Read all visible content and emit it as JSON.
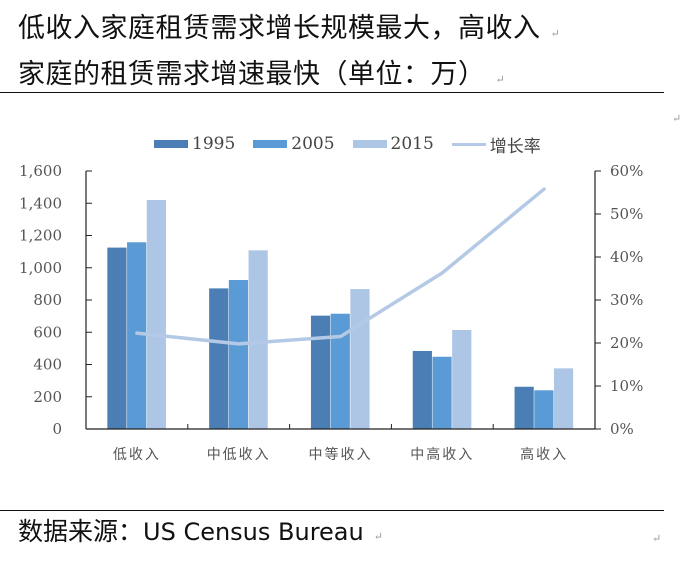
{
  "title": {
    "line1": "低收入家庭租赁需求增长规模最大，高收入",
    "line2": "家庭的租赁需求增速最快（单位：万）"
  },
  "legend": [
    {
      "label": "1995",
      "color": "#4a7eb5",
      "type": "bar"
    },
    {
      "label": "2005",
      "color": "#5b9bd5",
      "type": "bar"
    },
    {
      "label": "2015",
      "color": "#adc6e5",
      "type": "bar"
    },
    {
      "label": "增长率",
      "color": "#b4c9e6",
      "type": "line"
    }
  ],
  "source": {
    "label": "数据来源：",
    "value": "US Census Bureau"
  },
  "return_mark": "↵",
  "chart_data": {
    "type": "bar",
    "title": "低收入家庭租赁需求增长规模最大，高收入家庭的租赁需求增速最快（单位：万）",
    "categories": [
      "低收入",
      "中低收入",
      "中等收入",
      "中高收入",
      "高收入"
    ],
    "series": [
      {
        "name": "1995",
        "type": "bar",
        "axis": "left",
        "color": "#4a7eb5",
        "values": [
          1125,
          872,
          703,
          484,
          262
        ]
      },
      {
        "name": "2005",
        "type": "bar",
        "axis": "left",
        "color": "#5b9bd5",
        "values": [
          1158,
          924,
          715,
          448,
          240
        ]
      },
      {
        "name": "2015",
        "type": "bar",
        "axis": "left",
        "color": "#adc6e5",
        "values": [
          1420,
          1108,
          868,
          614,
          376
        ]
      },
      {
        "name": "增长率",
        "type": "line",
        "axis": "right",
        "color": "#b4c9e6",
        "values": [
          22.3,
          19.8,
          21.5,
          36.3,
          55.8
        ]
      }
    ],
    "xlabel": "",
    "ylabel": "",
    "ylim": [
      0,
      1600
    ],
    "yticks": [
      "0",
      "200",
      "400",
      "600",
      "800",
      "1,000",
      "1,200",
      "1,400",
      "1,600"
    ],
    "y2lim": [
      0,
      60
    ],
    "y2ticks": [
      "0%",
      "10%",
      "20%",
      "30%",
      "40%",
      "50%",
      "60%"
    ],
    "grid": false,
    "legend_position": "top"
  }
}
